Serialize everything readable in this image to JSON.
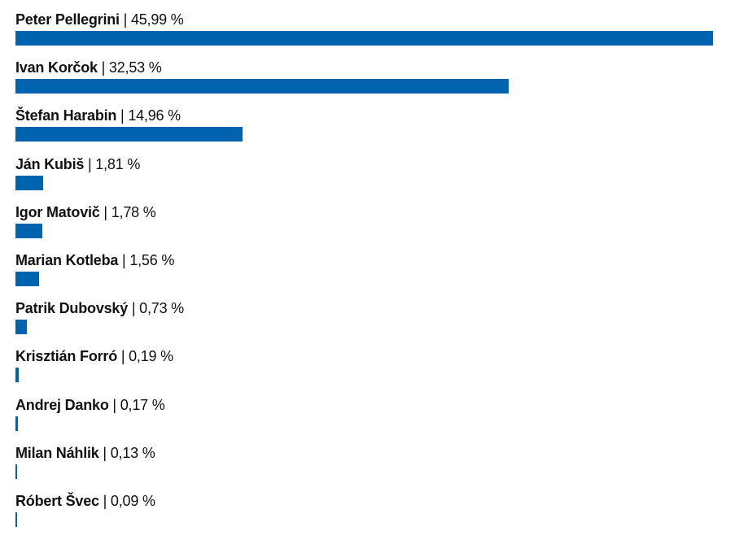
{
  "chart_data": {
    "type": "bar",
    "orientation": "horizontal",
    "bar_color": "#0063b0",
    "categories": [
      "Peter Pellegrini",
      "Ivan Korčok",
      "Štefan Harabin",
      "Ján Kubiš",
      "Igor Matovič",
      "Marian Kotleba",
      "Patrik Dubovský",
      "Krisztián Forró",
      "Andrej Danko",
      "Milan Náhlik",
      "Róbert Švec"
    ],
    "values": [
      45.99,
      32.53,
      14.96,
      1.81,
      1.78,
      1.56,
      0.73,
      0.19,
      0.17,
      0.13,
      0.09
    ],
    "value_labels": [
      "45,99 %",
      "32,53 %",
      "14,96 %",
      "1,81 %",
      "1,78 %",
      "1,56 %",
      "0,73 %",
      "0,19 %",
      "0,17 %",
      "0,13 %",
      "0,09 %"
    ],
    "separator": "|",
    "xlim": [
      0,
      45.99
    ],
    "grid": false,
    "title": "",
    "xlabel": "",
    "ylabel": ""
  }
}
